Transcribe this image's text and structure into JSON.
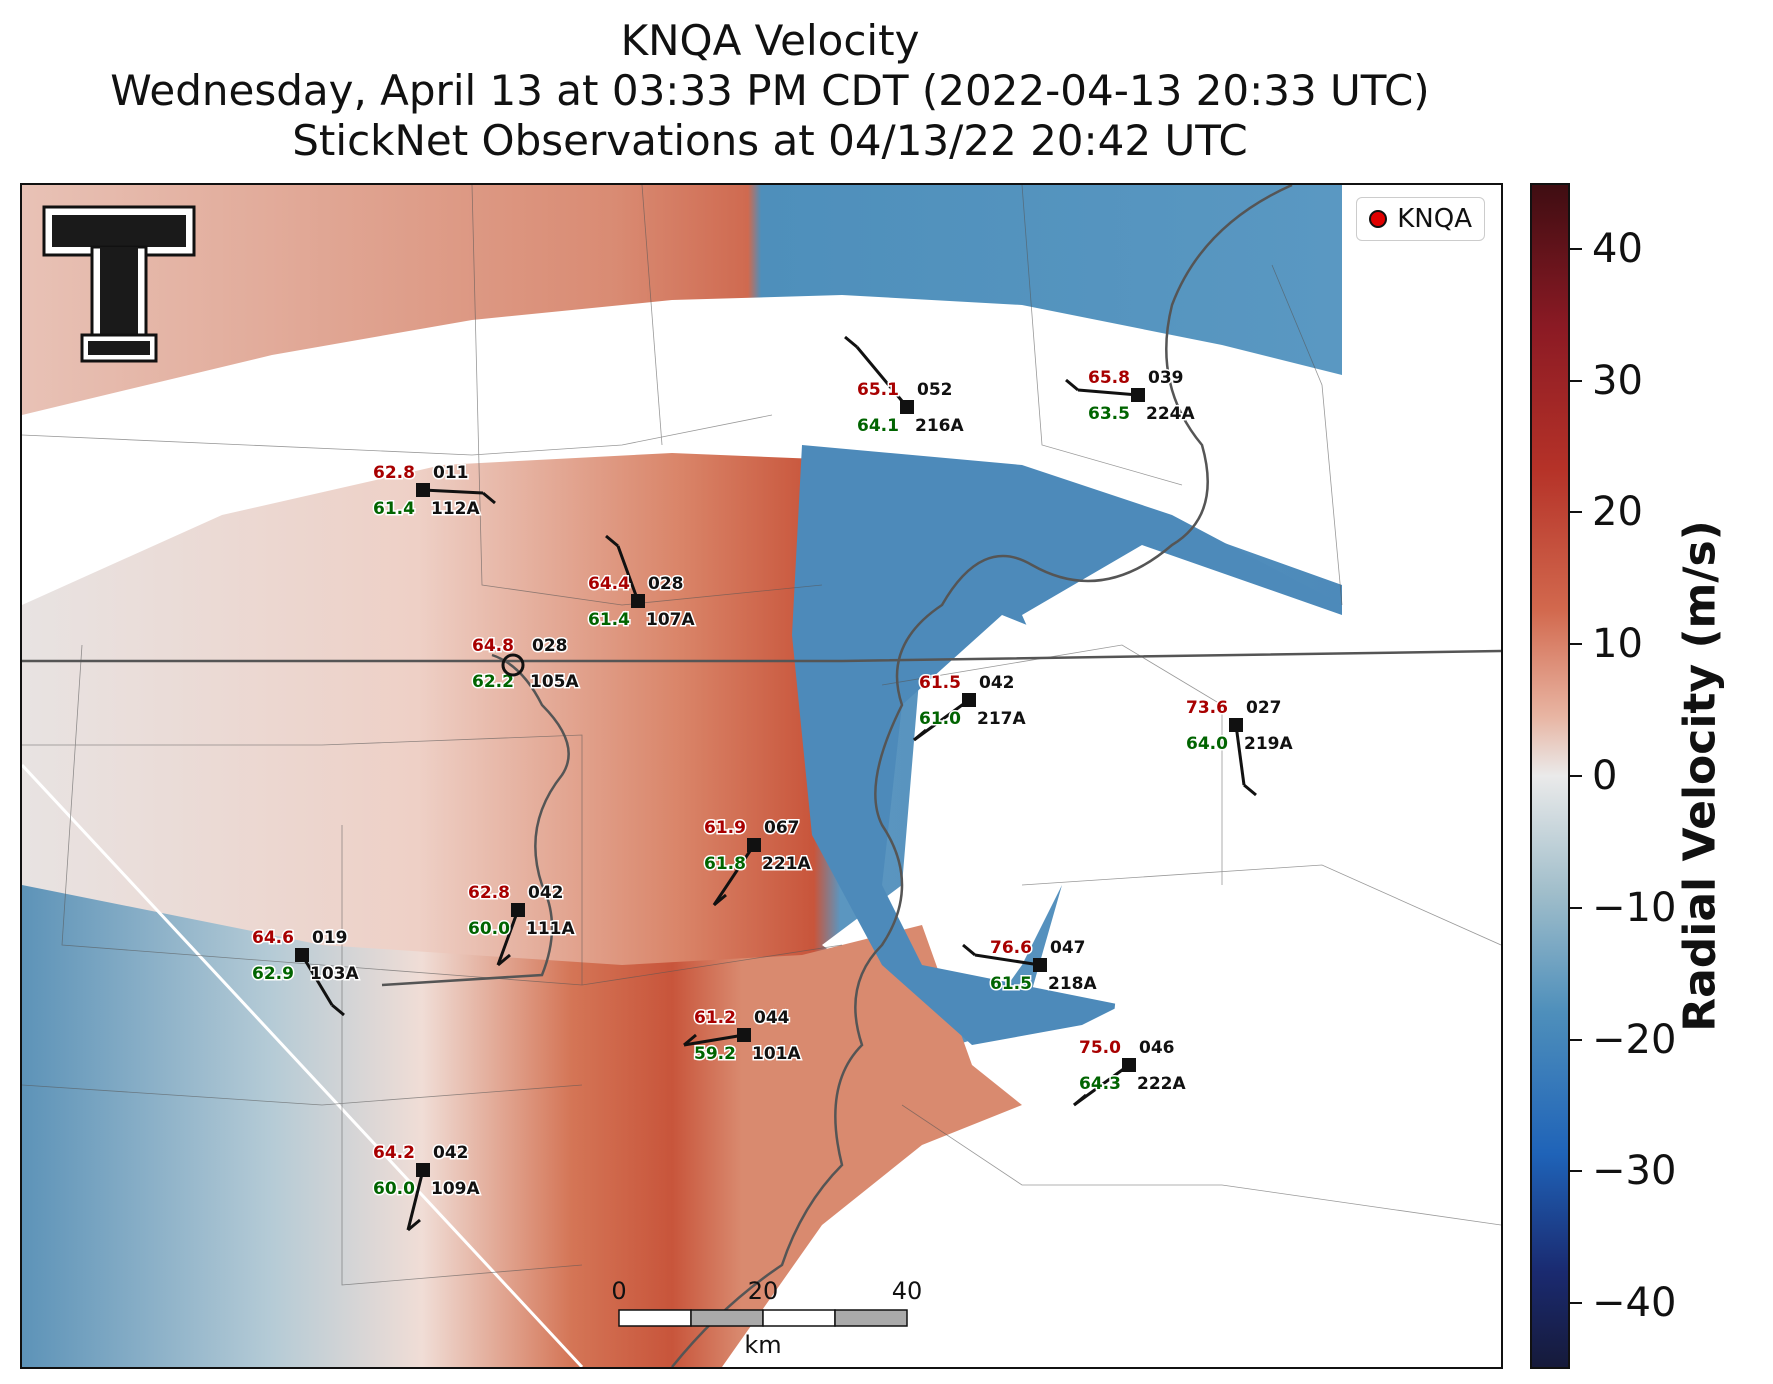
{
  "title": {
    "line1": "KNQA Velocity",
    "line2": "Wednesday, April 13 at 03:33 PM CDT (2022-04-13 20:33 UTC)",
    "line3": "StickNet Observations at 04/13/22 20:42 UTC"
  },
  "legend": {
    "label": "KNQA",
    "marker_color": "#e00000"
  },
  "colorbar": {
    "title": "Radial Velocity (m/s)",
    "ticks": [
      "40",
      "30",
      "20",
      "10",
      "0",
      "−10",
      "−20",
      "−30",
      "−40"
    ],
    "range": [
      -45,
      45
    ],
    "cmap": "red-white-blue"
  },
  "scale_bar": {
    "ticks": [
      "0",
      "20",
      "40"
    ],
    "unit": "km"
  },
  "colors": {
    "temp": "#a80000",
    "dew": "#006400",
    "id": "#111111",
    "outbound": "#d2694e",
    "inbound": "#4e8fbb"
  },
  "stations": [
    {
      "temp": "65.1",
      "dew": "64.1",
      "wind": "052",
      "id": "216A"
    },
    {
      "temp": "65.8",
      "dew": "63.5",
      "wind": "039",
      "id": "224A"
    },
    {
      "temp": "62.8",
      "dew": "61.4",
      "wind": "011",
      "id": "112A"
    },
    {
      "temp": "64.4",
      "dew": "61.4",
      "wind": "028",
      "id": "107A"
    },
    {
      "temp": "61.5",
      "dew": "61.0",
      "wind": "042",
      "id": "217A"
    },
    {
      "temp": "73.6",
      "dew": "64.0",
      "wind": "027",
      "id": "219A"
    },
    {
      "temp": "64.8",
      "dew": "62.2",
      "wind": "028",
      "id": "105A"
    },
    {
      "temp": "61.9",
      "dew": "61.8",
      "wind": "067",
      "id": "221A"
    },
    {
      "temp": "62.8",
      "dew": "60.0",
      "wind": "042",
      "id": "111A"
    },
    {
      "temp": "64.6",
      "dew": "62.9",
      "wind": "019",
      "id": "103A"
    },
    {
      "temp": "76.6",
      "dew": "61.5",
      "wind": "047",
      "id": "218A"
    },
    {
      "temp": "61.2",
      "dew": "59.2",
      "wind": "044",
      "id": "101A"
    },
    {
      "temp": "75.0",
      "dew": "64.3",
      "wind": "046",
      "id": "222A"
    },
    {
      "temp": "64.2",
      "dew": "60.0",
      "wind": "042",
      "id": "109A"
    }
  ]
}
